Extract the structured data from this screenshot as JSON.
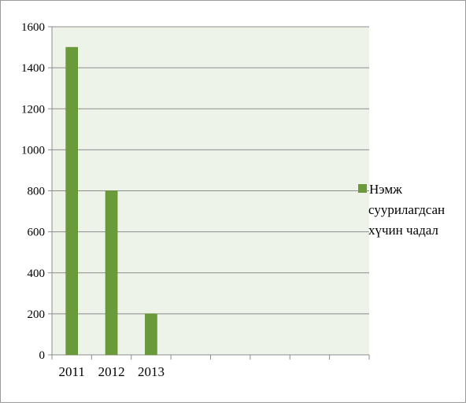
{
  "chart_data": {
    "type": "bar",
    "categories": [
      "2011",
      "2012",
      "2013",
      "",
      "",
      "",
      "",
      ""
    ],
    "series": [
      {
        "name": "Нэмж суурилагдсан хүчин чадал",
        "name_lines": [
          "Нэмж",
          "суурилагдсан",
          "хүчин чадал"
        ],
        "values": [
          1500,
          800,
          200,
          null,
          null,
          null,
          null,
          null
        ],
        "color": "#6a9a3a"
      }
    ],
    "y_ticks": [
      "0",
      "200",
      "400",
      "600",
      "800",
      "1000",
      "1200",
      "1400",
      "1600"
    ],
    "ylim": [
      0,
      1600
    ],
    "title": "",
    "xlabel": "",
    "ylabel": "",
    "grid": true,
    "legend_position": "right",
    "plot_background": "#eef3ea"
  }
}
